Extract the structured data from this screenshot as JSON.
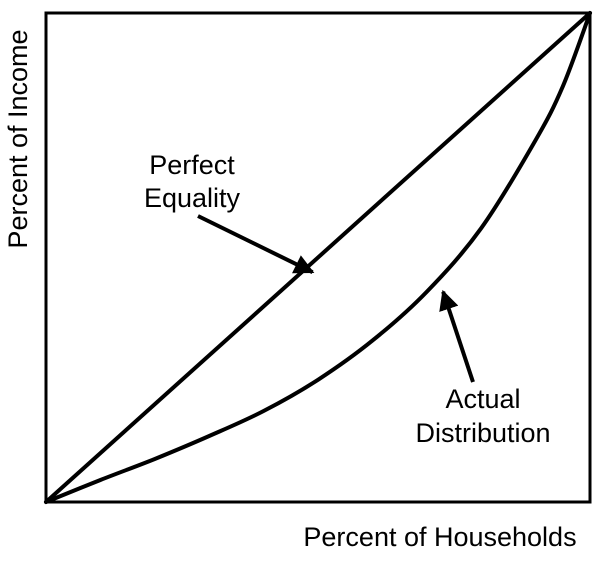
{
  "chart_data": {
    "type": "line",
    "title": "",
    "xlabel": "Percent of Households",
    "ylabel": "Percent of Income",
    "xlim": [
      0,
      100
    ],
    "ylim": [
      0,
      100
    ],
    "grid": false,
    "tick_labels_shown": false,
    "series": [
      {
        "name": "Perfect Equality",
        "x": [
          0,
          100
        ],
        "y": [
          0,
          100
        ]
      },
      {
        "name": "Actual Distribution",
        "x": [
          0,
          10,
          20,
          30,
          40,
          50,
          60,
          70,
          80,
          90,
          95,
          100
        ],
        "y": [
          0,
          4.5,
          8.8,
          13.5,
          18.6,
          25,
          33,
          43,
          56,
          74,
          85,
          100
        ]
      }
    ],
    "annotations": [
      {
        "lines": [
          "Perfect",
          "Equality"
        ],
        "points_to": "Perfect Equality",
        "target": [
          49,
          47
        ]
      },
      {
        "lines": [
          "Actual",
          "Distribution"
        ],
        "points_to": "Actual Distribution",
        "target": [
          73,
          43
        ]
      }
    ],
    "colors": {
      "line": "#000000",
      "background": "#ffffff"
    }
  }
}
